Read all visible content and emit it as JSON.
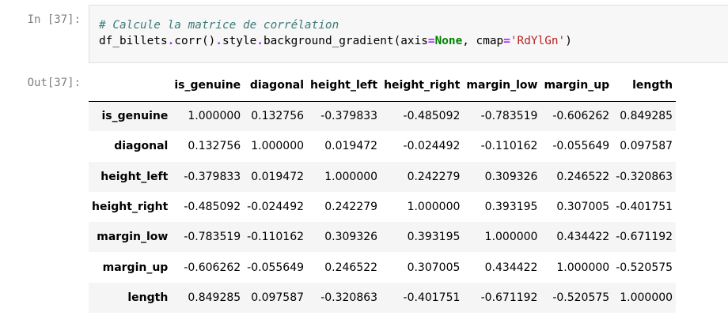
{
  "notebook": {
    "in_prompt": "In [37]:",
    "out_prompt": "Out[37]:"
  },
  "code": {
    "comment": "# Calcule la matrice de corrélation",
    "line2": {
      "t1": "df_billets",
      "t2": ".",
      "t3": "corr",
      "t4": "()",
      "t5": ".",
      "t6": "style",
      "t7": ".",
      "t8": "background_gradient(axis",
      "t9": "=",
      "t10": "None",
      "t11": ", cmap",
      "t12": "=",
      "t13": "'RdYlGn'",
      "t14": ")"
    }
  },
  "table": {
    "columns": [
      "is_genuine",
      "diagonal",
      "height_left",
      "height_right",
      "margin_low",
      "margin_up",
      "length"
    ],
    "rows": [
      {
        "label": "is_genuine",
        "values": [
          "1.000000",
          "0.132756",
          "-0.379833",
          "-0.485092",
          "-0.783519",
          "-0.606262",
          "0.849285"
        ]
      },
      {
        "label": "diagonal",
        "values": [
          "0.132756",
          "1.000000",
          "0.019472",
          "-0.024492",
          "-0.110162",
          "-0.055649",
          "0.097587"
        ]
      },
      {
        "label": "height_left",
        "values": [
          "-0.379833",
          "0.019472",
          "1.000000",
          "0.242279",
          "0.309326",
          "0.246522",
          "-0.320863"
        ]
      },
      {
        "label": "height_right",
        "values": [
          "-0.485092",
          "-0.024492",
          "0.242279",
          "1.000000",
          "0.393195",
          "0.307005",
          "-0.401751"
        ]
      },
      {
        "label": "margin_low",
        "values": [
          "-0.783519",
          "-0.110162",
          "0.309326",
          "0.393195",
          "1.000000",
          "0.434422",
          "-0.671192"
        ]
      },
      {
        "label": "margin_up",
        "values": [
          "-0.606262",
          "-0.055649",
          "0.246522",
          "0.307005",
          "0.434422",
          "1.000000",
          "-0.520575"
        ]
      },
      {
        "label": "length",
        "values": [
          "0.849285",
          "0.097587",
          "-0.320863",
          "-0.401751",
          "-0.671192",
          "-0.520575",
          "1.000000"
        ]
      }
    ]
  }
}
